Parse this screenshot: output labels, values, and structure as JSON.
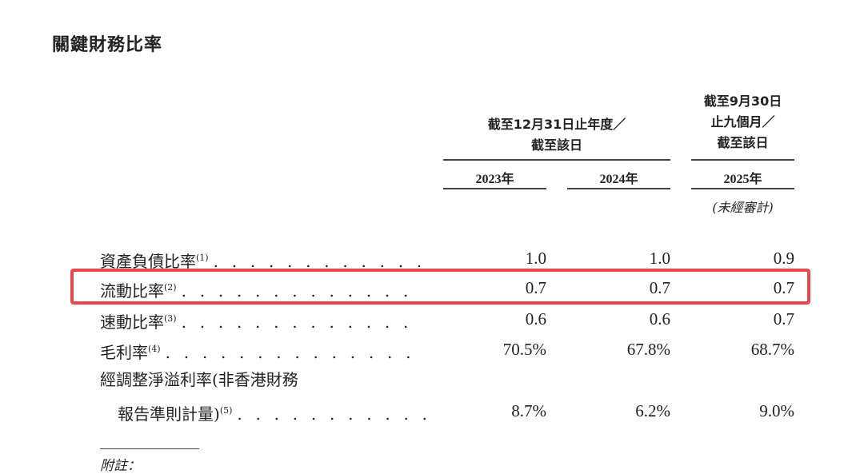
{
  "title": "關鍵財務比率",
  "header": {
    "group1": [
      "截至12月31日止年度／",
      "截至該日"
    ],
    "group2": [
      "截至9月30日",
      "止九個月／",
      "截至該日"
    ],
    "years": [
      "2023年",
      "2024年",
      "2025年"
    ],
    "unaudited": "(未經審計)"
  },
  "rows": [
    {
      "label": "資產負債比率",
      "note": "(1)",
      "values": [
        "1.0",
        "1.0",
        "0.9"
      ]
    },
    {
      "label": "流動比率",
      "note": "(2)",
      "values": [
        "0.7",
        "0.7",
        "0.7"
      ],
      "highlighted": true
    },
    {
      "label": "速動比率",
      "note": "(3)",
      "values": [
        "0.6",
        "0.6",
        "0.7"
      ]
    },
    {
      "label": "毛利率",
      "note": "(4)",
      "values": [
        "70.5%",
        "67.8%",
        "68.7%"
      ]
    },
    {
      "label_line1": "經調整淨溢利率(非香港財務",
      "label": "報告準則計量)",
      "note": "(5)",
      "values": [
        "8.7%",
        "6.2%",
        "9.0%"
      ]
    }
  ],
  "highlight_color": "#e8474c",
  "footnote_label": "附註："
}
